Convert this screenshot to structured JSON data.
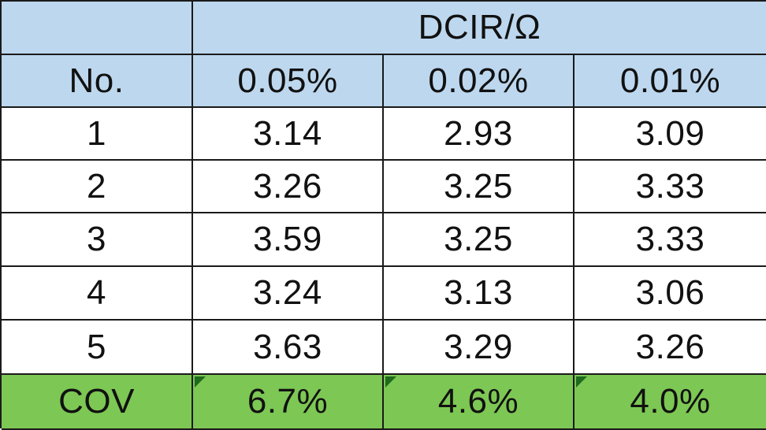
{
  "table": {
    "group_header": "DCIR/Ω",
    "columns": [
      "No.",
      "0.05%",
      "0.02%",
      "0.01%"
    ],
    "rows": [
      [
        "1",
        "3.14",
        "2.93",
        "3.09"
      ],
      [
        "2",
        "3.26",
        "3.25",
        "3.33"
      ],
      [
        "3",
        "3.59",
        "3.25",
        "3.33"
      ],
      [
        "4",
        "3.24",
        "3.13",
        "3.06"
      ],
      [
        "5",
        "3.63",
        "3.29",
        "3.26"
      ]
    ],
    "summary": [
      "COV",
      "6.7%",
      "4.6%",
      "4.0%"
    ]
  },
  "colors": {
    "header_bg": "#bdd7ee",
    "summary_bg": "#7dc754",
    "border": "#1a1a1a"
  }
}
